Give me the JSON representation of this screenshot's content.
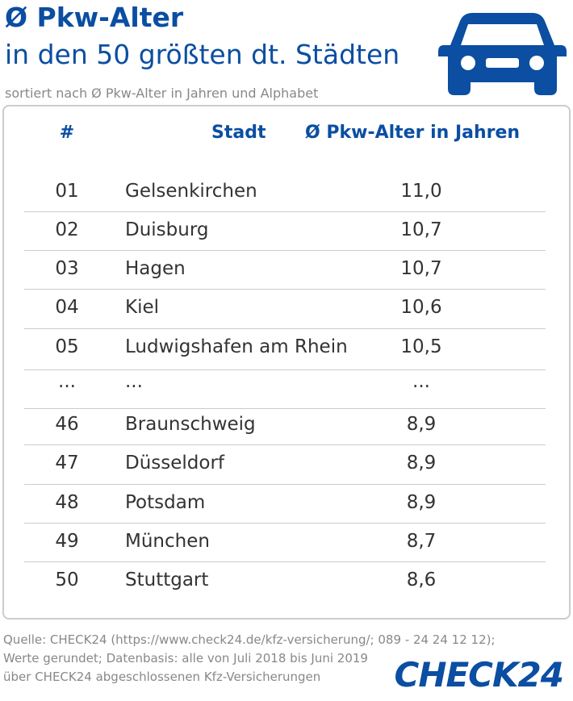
{
  "header": {
    "title": "Ø Pkw-Alter",
    "subtitle": "in den 50 größten dt. Städten",
    "note": "sortiert nach Ø Pkw-Alter in Jahren und Alphabet"
  },
  "table": {
    "columns": [
      "#",
      "Stadt",
      "Ø Pkw-Alter in Jahren"
    ],
    "rows": [
      [
        "01",
        "Gelsenkirchen",
        "11,0"
      ],
      [
        "02",
        "Duisburg",
        "10,7"
      ],
      [
        "03",
        "Hagen",
        "10,7"
      ],
      [
        "04",
        "Kiel",
        "10,6"
      ],
      [
        "05",
        "Ludwigshafen am Rhein",
        "10,5"
      ],
      [
        "...",
        "...",
        "..."
      ],
      [
        "46",
        "Braunschweig",
        "8,9"
      ],
      [
        "47",
        "Düsseldorf",
        "8,9"
      ],
      [
        "48",
        "Potsdam",
        "8,9"
      ],
      [
        "49",
        "München",
        "8,7"
      ],
      [
        "50",
        "Stuttgart",
        "8,6"
      ]
    ]
  },
  "footer": {
    "lines": [
      "Quelle: CHECK24 (https://www.check24.de/kfz-versicherung/; 089 - 24 24 12 12);",
      "Werte gerundet; Datenbasis: alle von Juli 2018 bis Juni 2019",
      "über CHECK24 abgeschlossenen Kfz-Versicherungen"
    ],
    "logo": "CHECK24"
  }
}
